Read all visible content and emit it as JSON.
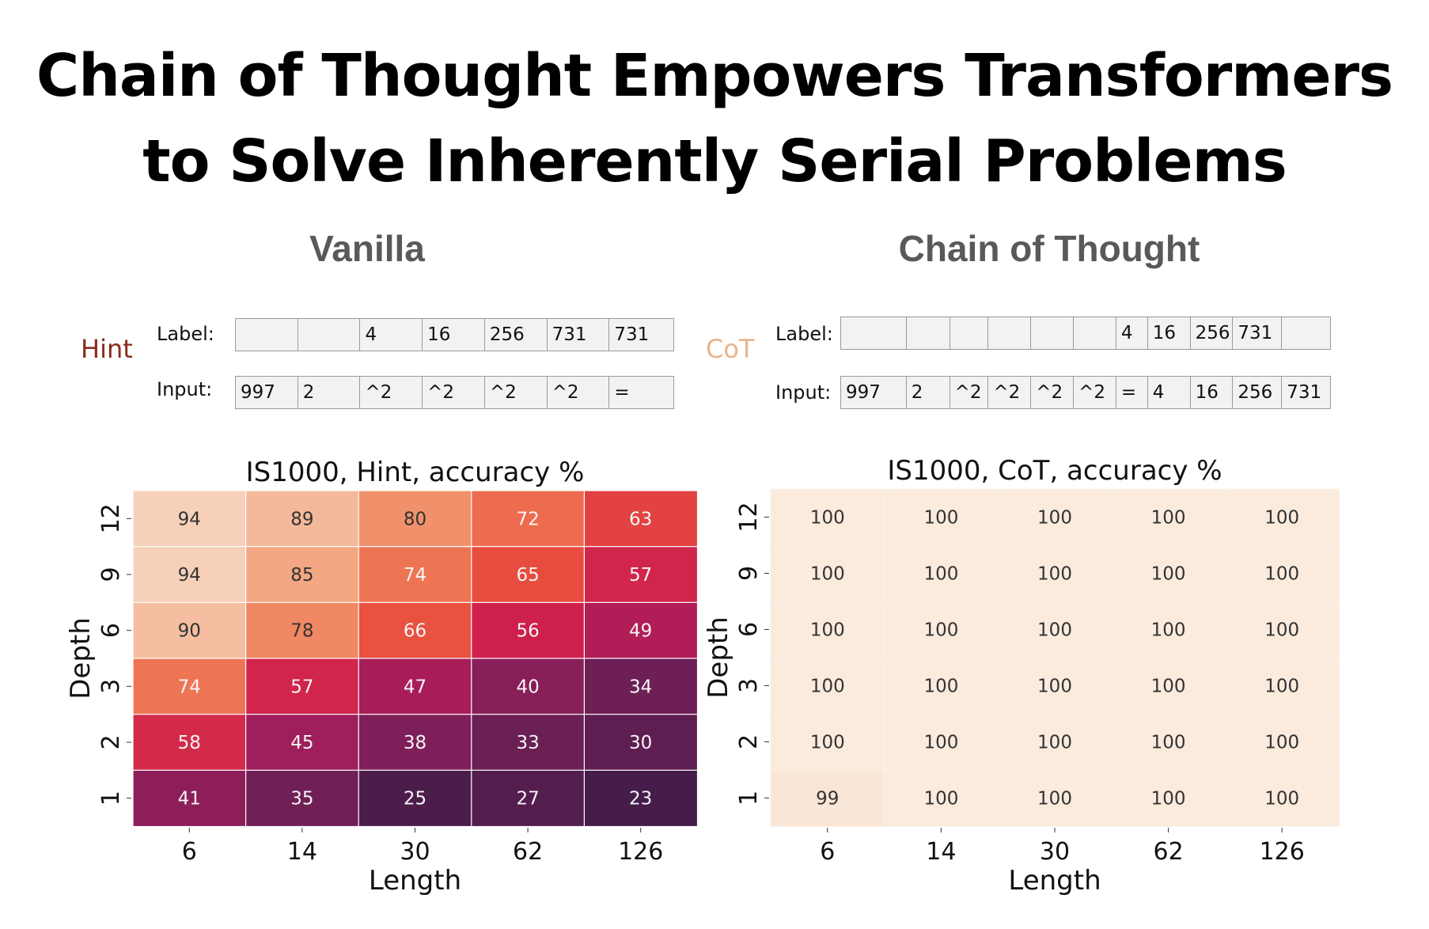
{
  "title_lines": [
    "Chain of Thought Empowers Transformers",
    "to Solve Inherently Serial Problems"
  ],
  "left": {
    "heading": "Vanilla",
    "tag": "Hint",
    "tag_color": "#8b2a1e",
    "label_caption": "Label:",
    "input_caption": "Input:",
    "label_tokens": [
      "",
      "",
      "4",
      "16",
      "256",
      "731",
      "731"
    ],
    "input_tokens": [
      "997",
      "2",
      "^2",
      "^2",
      "^2",
      "^2",
      "="
    ]
  },
  "right": {
    "heading": "Chain of Thought",
    "tag": "CoT",
    "tag_color": "#e8b58c",
    "label_caption": "Label:",
    "input_caption": "Input:",
    "label_tokens": [
      "",
      "",
      "",
      "",
      "",
      "",
      "4",
      "16",
      "256",
      "731",
      ""
    ],
    "input_tokens": [
      "997",
      "2",
      "^2",
      "^2",
      "^2",
      "^2",
      "=",
      "4",
      "16",
      "256",
      "731"
    ]
  },
  "chart_data": [
    {
      "type": "heatmap",
      "title": "IS1000, Hint, accuracy %",
      "xlabel": "Length",
      "ylabel": "Depth",
      "x": [
        6,
        14,
        30,
        62,
        126
      ],
      "y": [
        12,
        9,
        6,
        3,
        2,
        1
      ],
      "values": [
        [
          94,
          89,
          80,
          72,
          63
        ],
        [
          94,
          85,
          74,
          65,
          57
        ],
        [
          90,
          78,
          66,
          56,
          49
        ],
        [
          74,
          57,
          47,
          40,
          34
        ],
        [
          58,
          45,
          38,
          33,
          30
        ],
        [
          41,
          35,
          25,
          27,
          23
        ]
      ],
      "colormap": "rocket",
      "vmin": 0,
      "vmax": 100
    },
    {
      "type": "heatmap",
      "title": "IS1000, CoT, accuracy %",
      "xlabel": "Length",
      "ylabel": "Depth",
      "x": [
        6,
        14,
        30,
        62,
        126
      ],
      "y": [
        12,
        9,
        6,
        3,
        2,
        1
      ],
      "values": [
        [
          100,
          100,
          100,
          100,
          100
        ],
        [
          100,
          100,
          100,
          100,
          100
        ],
        [
          100,
          100,
          100,
          100,
          100
        ],
        [
          100,
          100,
          100,
          100,
          100
        ],
        [
          100,
          100,
          100,
          100,
          100
        ],
        [
          99,
          100,
          100,
          100,
          100
        ]
      ],
      "colormap": "rocket",
      "vmin": 0,
      "vmax": 100
    }
  ]
}
